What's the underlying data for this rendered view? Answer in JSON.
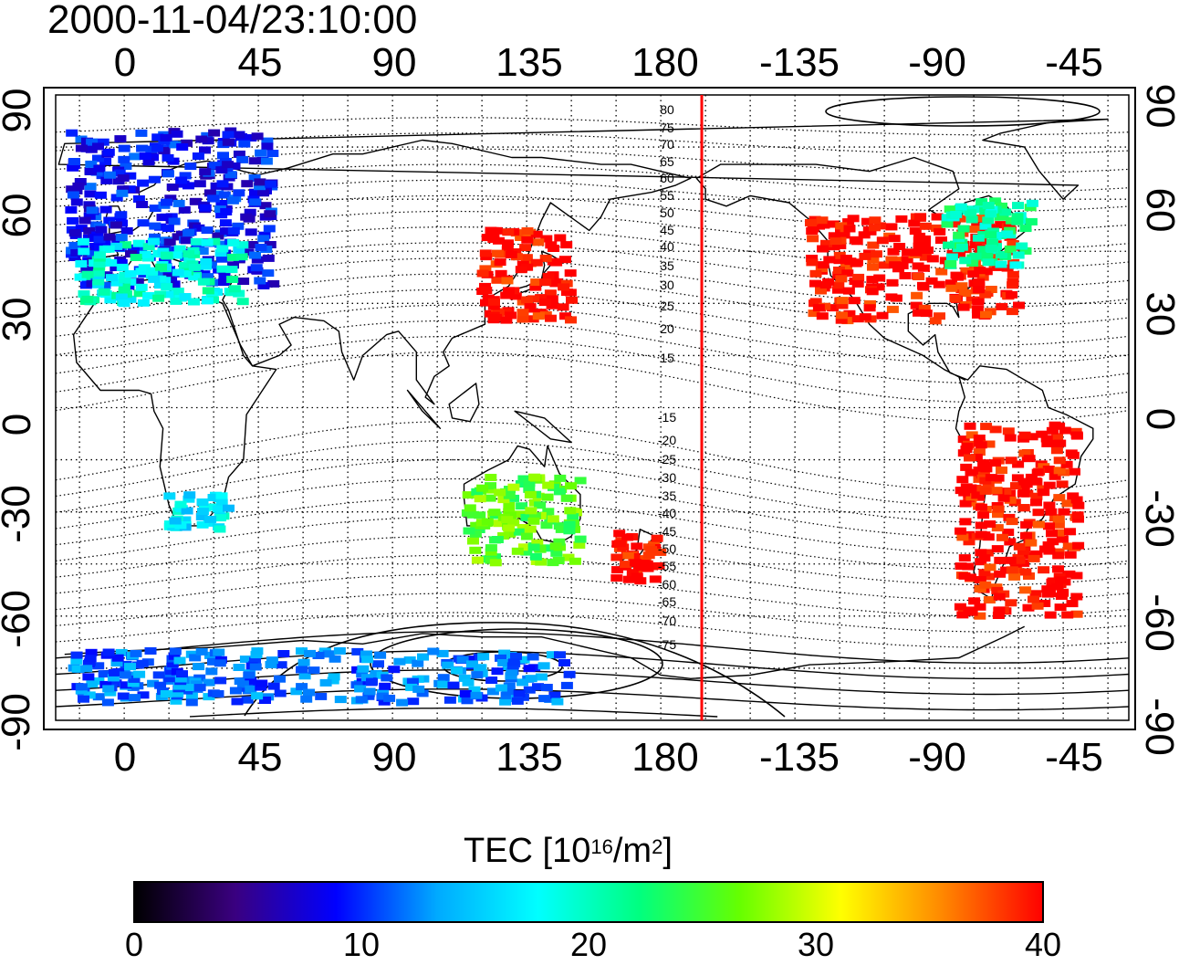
{
  "title": "2000-11-04/23:10:00",
  "lon_ticks": [
    "0",
    "45",
    "90",
    "135",
    "180",
    "-135",
    "-90",
    "-45"
  ],
  "lat_ticks": [
    "90",
    "60",
    "30",
    "0",
    "-30",
    "-60",
    "-90"
  ],
  "mlat_labels": [
    "80",
    "75",
    "70",
    "65",
    "60",
    "55",
    "50",
    "45",
    "40",
    "35",
    "30",
    "25",
    "20",
    "15",
    "-15",
    "-20",
    "-25",
    "-30",
    "-35",
    "-40",
    "-45",
    "-50",
    "-55",
    "-60",
    "-65",
    "-70",
    "-75"
  ],
  "colorbar": {
    "label_main": "TEC  [10",
    "label_exp1": "16",
    "label_mid": "/m",
    "label_exp2": "2",
    "label_end": "]",
    "ticks": [
      "0",
      "10",
      "20",
      "30",
      "40"
    ],
    "range": [
      0,
      40
    ],
    "colors": [
      "#000000",
      "#3a0080",
      "#0000ff",
      "#00aaff",
      "#00ffff",
      "#00ff80",
      "#66ff00",
      "#ffff00",
      "#ff8800",
      "#ff0000"
    ]
  },
  "terminator_color": "#ff0000",
  "chart_data": {
    "type": "heatmap",
    "title": "2000-11-04/23:10:00",
    "xlabel": "",
    "ylabel": "",
    "xlim": [
      -23,
      337
    ],
    "ylim": [
      -90,
      90
    ],
    "value_label": "TEC [10^16/m^2]",
    "value_range": [
      0,
      40
    ],
    "terminator_longitude": 193,
    "regions": [
      {
        "name": "",
        "lon": [
          -18,
          50
        ],
        "lat": [
          35,
          80
        ],
        "tec": 9
      },
      {
        "name": "",
        "lon": [
          -15,
          40
        ],
        "lat": [
          30,
          48
        ],
        "tec": 19
      },
      {
        "name": "",
        "lon": [
          120,
          150
        ],
        "lat": [
          25,
          52
        ],
        "tec": 40
      },
      {
        "name": "",
        "lon": [
          -130,
          -60
        ],
        "lat": [
          25,
          55
        ],
        "tec": 40
      },
      {
        "name": "",
        "lon": [
          -85,
          -55
        ],
        "lat": [
          40,
          60
        ],
        "tec": 21
      },
      {
        "name": "",
        "lon": [
          -80,
          -40
        ],
        "lat": [
          -60,
          -5
        ],
        "tec": 40
      },
      {
        "name": "",
        "lon": [
          15,
          35
        ],
        "lat": [
          -35,
          -25
        ],
        "tec": 17
      },
      {
        "name": "",
        "lon": [
          115,
          155
        ],
        "lat": [
          -45,
          -20
        ],
        "tec": 26
      },
      {
        "name": "",
        "lon": [
          165,
          180
        ],
        "lat": [
          -50,
          -35
        ],
        "tec": 40
      },
      {
        "name": "",
        "lon": [
          -20,
          150
        ],
        "lat": [
          -85,
          -70
        ],
        "tec": 12
      }
    ]
  }
}
